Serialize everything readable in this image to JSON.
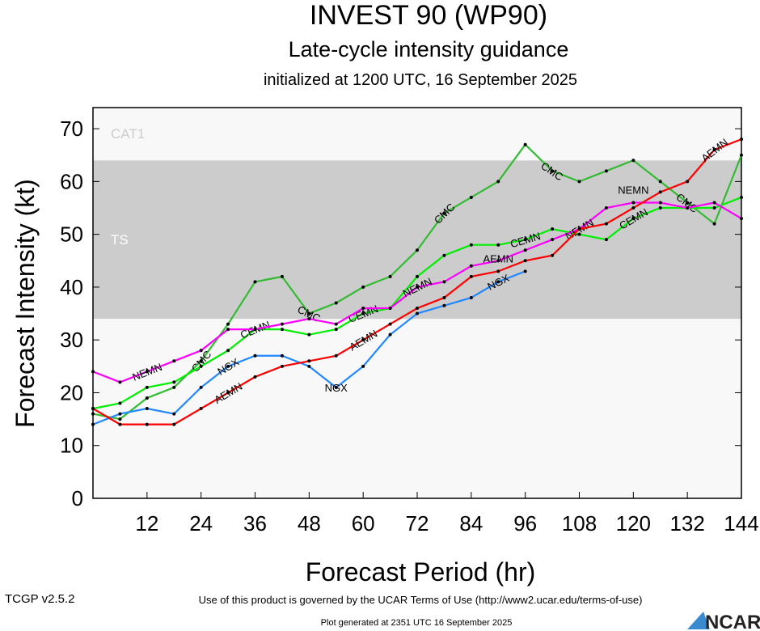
{
  "chart_data": {
    "type": "line",
    "title": "INVEST 90 (WP90)",
    "subtitle": "Late-cycle intensity guidance",
    "subtitle2": "initialized at 1200 UTC, 16 September 2025",
    "xlabel": "Forecast Period (hr)",
    "ylabel": "Forecast Intensity (kt)",
    "xlim": [
      0,
      144
    ],
    "ylim": [
      0,
      74
    ],
    "xticks": [
      12,
      24,
      36,
      48,
      60,
      72,
      84,
      96,
      108,
      120,
      132,
      144
    ],
    "yticks": [
      0,
      10,
      20,
      30,
      40,
      50,
      60,
      70
    ],
    "bands": [
      {
        "label": "TS",
        "from": 34,
        "to": 64,
        "color": "#cccccc"
      },
      {
        "label": "CAT1",
        "from": 64,
        "to": 74,
        "color": "#f8f8f8"
      }
    ],
    "x": [
      0,
      6,
      12,
      18,
      24,
      30,
      36,
      42,
      48,
      54,
      60,
      66,
      72,
      78,
      84,
      90,
      96,
      102,
      108,
      114,
      120,
      126,
      132,
      138,
      144
    ],
    "series": [
      {
        "name": "CMC",
        "color": "#33bb33",
        "label_at": [
          4,
          8,
          13,
          17,
          22
        ],
        "values": [
          16,
          15,
          19,
          21,
          26,
          33,
          41,
          42,
          35,
          37,
          40,
          42,
          47,
          54,
          57,
          60,
          67,
          62,
          60,
          62,
          64,
          60,
          56,
          52,
          65
        ]
      },
      {
        "name": "CEMN",
        "color": "#00ee00",
        "label_at": [
          5,
          10,
          16,
          22
        ],
        "values": [
          17,
          18,
          21,
          22,
          25,
          28,
          32,
          32,
          31,
          32,
          35,
          36,
          42,
          46,
          48,
          48,
          49,
          51,
          50,
          49,
          53,
          55,
          55,
          55,
          57
        ]
      },
      {
        "name": "NEMN",
        "color": "#ff00ff",
        "label_at": [
          5,
          10,
          16,
          22
        ],
        "values": [
          24,
          22,
          24,
          26,
          28,
          32,
          32,
          33,
          34,
          33,
          36,
          36,
          40,
          41,
          44,
          45,
          47,
          49,
          51,
          55,
          56,
          56,
          55,
          56,
          53
        ]
      },
      {
        "name": "NGX",
        "color": "#2288ff",
        "label_at": [
          4,
          9,
          15
        ],
        "values": [
          14,
          16,
          17,
          16,
          21,
          25,
          27,
          27,
          25,
          21,
          25,
          31,
          35,
          36.5,
          38,
          41,
          43,
          null,
          null,
          null,
          null,
          null,
          null,
          null,
          null
        ]
      },
      {
        "name": "AEMN",
        "color": "#ff0000",
        "label_at": [
          5,
          11,
          16,
          21
        ],
        "values": [
          17,
          14,
          14,
          14,
          17,
          20,
          23,
          25,
          26,
          27,
          30,
          33,
          36,
          38,
          42,
          43,
          45,
          46,
          51,
          52,
          55,
          58,
          60,
          66,
          68
        ]
      }
    ]
  },
  "footer": {
    "version": "TCGP v2.5.2",
    "terms": "Use of this product is governed by the UCAR Terms of Use (http://www2.ucar.edu/terms-of-use)",
    "generated": "Plot generated at 2351 UTC   16 September 2025",
    "logo": "NCAR"
  }
}
